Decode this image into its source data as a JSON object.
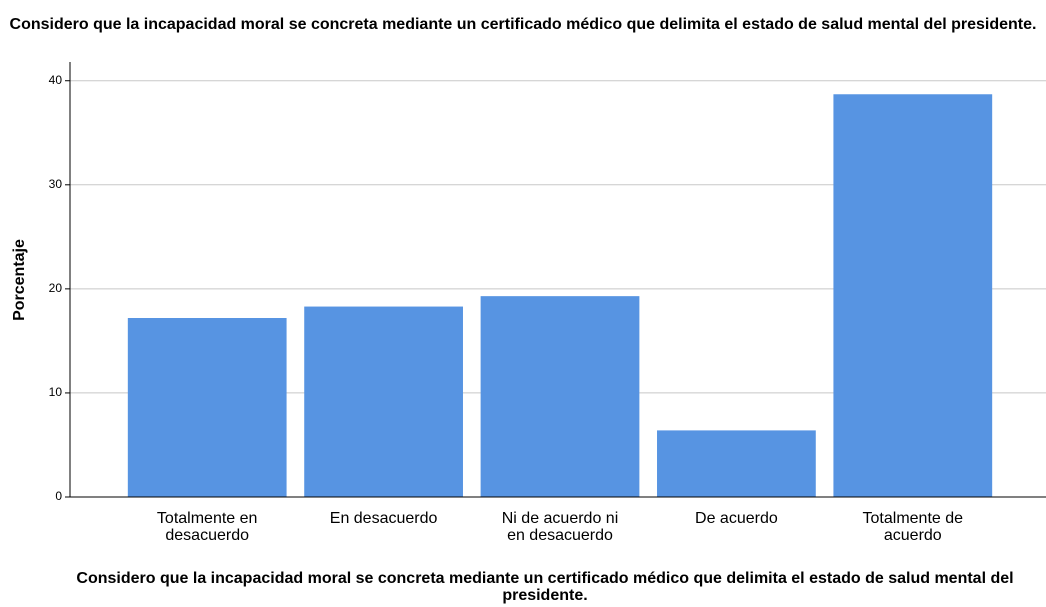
{
  "chart_data": {
    "type": "bar",
    "title": "Considero que la incapacidad moral se concreta mediante un certificado médico que delimita el estado de salud mental del presidente.",
    "x_label": "Considero que la incapacidad moral se concreta mediante un certificado médico que delimita el estado de salud mental del presidente.",
    "y_label": "Porcentaje",
    "categories": [
      "Totalmente en desacuerdo",
      "En desacuerdo",
      "Ni de acuerdo ni en desacuerdo",
      "De acuerdo",
      "Totalmente de acuerdo"
    ],
    "values": [
      17.2,
      18.3,
      19.3,
      6.4,
      38.7
    ],
    "color": "#5794e2",
    "ylim": [
      0,
      41.8
    ],
    "yticks": [
      0,
      10,
      20,
      30,
      40
    ],
    "grid": true
  }
}
